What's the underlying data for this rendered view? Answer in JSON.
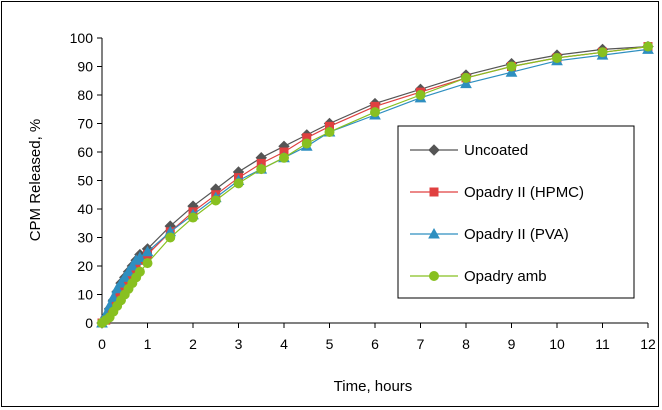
{
  "chart_data": {
    "type": "line",
    "title": "",
    "xlabel": "Time, hours",
    "ylabel": "CPM Released, %",
    "xlim": [
      0,
      12
    ],
    "ylim": [
      0,
      100
    ],
    "x_ticks": [
      0,
      1,
      2,
      3,
      4,
      5,
      6,
      7,
      8,
      9,
      10,
      11,
      12
    ],
    "y_ticks": [
      0,
      10,
      20,
      30,
      40,
      50,
      60,
      70,
      80,
      90,
      100
    ],
    "grid": false,
    "legend_position": "right",
    "series": [
      {
        "name": "Uncoated",
        "color": "#555555",
        "marker": "diamond",
        "x": [
          0,
          0.083,
          0.167,
          0.25,
          0.333,
          0.417,
          0.5,
          0.583,
          0.667,
          0.75,
          0.833,
          1,
          1.5,
          2,
          2.5,
          3,
          3.5,
          4,
          4.5,
          5,
          6,
          7,
          8,
          9,
          10,
          11,
          12
        ],
        "y": [
          0,
          2,
          5,
          8,
          11,
          14,
          16,
          18,
          20,
          22,
          24,
          26,
          34,
          41,
          47,
          53,
          58,
          62,
          66,
          70,
          77,
          82,
          87,
          91,
          94,
          96,
          97
        ]
      },
      {
        "name": "Opadry II (HPMC)",
        "color": "#e04040",
        "marker": "square",
        "x": [
          0,
          0.083,
          0.167,
          0.25,
          0.333,
          0.417,
          0.5,
          0.583,
          0.667,
          0.75,
          0.833,
          1,
          1.5,
          2,
          2.5,
          3,
          3.5,
          4,
          4.5,
          5,
          6,
          7,
          8,
          9,
          10,
          11,
          12
        ],
        "y": [
          0,
          1,
          3,
          6,
          9,
          12,
          14,
          16,
          18,
          20,
          22,
          24,
          32,
          39,
          45,
          51,
          56,
          60,
          65,
          69,
          76,
          81,
          86,
          90,
          93,
          95,
          97
        ]
      },
      {
        "name": "Opadry II (PVA)",
        "color": "#2e8fc0",
        "marker": "triangle",
        "x": [
          0,
          0.083,
          0.167,
          0.25,
          0.333,
          0.417,
          0.5,
          0.583,
          0.667,
          0.75,
          0.833,
          1,
          1.5,
          2,
          2.5,
          3,
          3.5,
          4,
          4.5,
          5,
          6,
          7,
          8,
          9,
          10,
          11,
          12
        ],
        "y": [
          0,
          3,
          6,
          9,
          12,
          14,
          16,
          18,
          20,
          22,
          23,
          25,
          32,
          38,
          44,
          50,
          54,
          58,
          62,
          67,
          73,
          79,
          84,
          88,
          92,
          94,
          96
        ]
      },
      {
        "name": "Opadry amb",
        "color": "#88c020",
        "marker": "circle",
        "x": [
          0,
          0.083,
          0.167,
          0.25,
          0.333,
          0.417,
          0.5,
          0.583,
          0.667,
          0.75,
          0.833,
          1,
          1.5,
          2,
          2.5,
          3,
          3.5,
          4,
          4.5,
          5,
          6,
          7,
          8,
          9,
          10,
          11,
          12
        ],
        "y": [
          0,
          1,
          2,
          4,
          6,
          8,
          10,
          12,
          14,
          16,
          18,
          21,
          30,
          37,
          43,
          49,
          54,
          58,
          63,
          67,
          74,
          80,
          86,
          90,
          93,
          95,
          97
        ]
      }
    ]
  }
}
